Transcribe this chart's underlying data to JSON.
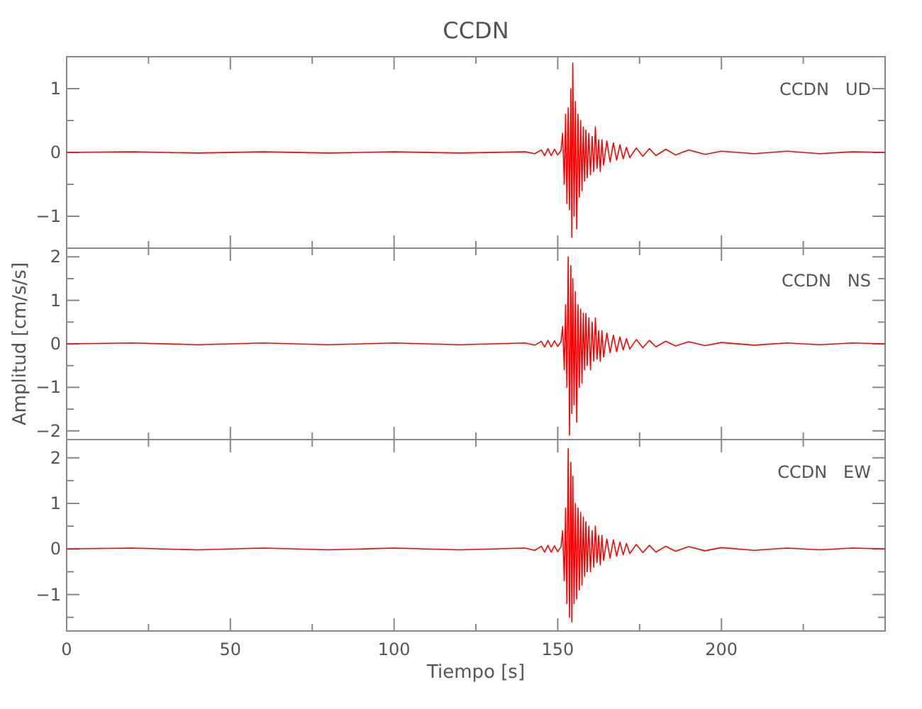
{
  "chart_data": [
    {
      "type": "line",
      "title": "CCDN",
      "annotations": [
        "CCDN   UD"
      ],
      "xlim": [
        0,
        250
      ],
      "xticks": [
        0,
        {
          "value": 25,
          "label": null
        },
        50,
        {
          "value": 75,
          "label": null
        },
        100,
        {
          "value": 125,
          "label": null
        },
        150,
        {
          "value": 175,
          "label": null
        },
        200,
        {
          "value": 225,
          "label": null
        }
      ],
      "ylim": [
        -1.5,
        1.5
      ],
      "yticks": [
        -1,
        {
          "value": -0.5,
          "label": null
        },
        0,
        {
          "value": 0.5,
          "label": null
        },
        1
      ],
      "tick_labels": "y",
      "grid": false,
      "series": [
        {
          "color": "#ff0000",
          "x": [
            0,
            20,
            40,
            60,
            80,
            100,
            120,
            140,
            143,
            145,
            146,
            147,
            148,
            149,
            150,
            151,
            151.5,
            152,
            152.4,
            152.8,
            153.2,
            153.6,
            154,
            154.3,
            154.6,
            155,
            155.4,
            155.8,
            156.2,
            156.6,
            157,
            157.4,
            157.8,
            158.2,
            158.6,
            159,
            159.5,
            160,
            160.5,
            161,
            161.5,
            162,
            162.5,
            163,
            163.5,
            164,
            165,
            166,
            167,
            168,
            169,
            170,
            171,
            172,
            174,
            176,
            178,
            180,
            183,
            186,
            190,
            195,
            200,
            210,
            220,
            230,
            240,
            250
          ],
          "values": [
            0,
            0.01,
            -0.01,
            0.01,
            -0.01,
            0.01,
            -0.01,
            0.01,
            -0.02,
            0.04,
            -0.05,
            0.06,
            -0.05,
            0.05,
            -0.04,
            0.03,
            0.3,
            -0.5,
            0.6,
            -0.8,
            0.7,
            -0.9,
            1.0,
            -1.33,
            1.4,
            -1.0,
            0.8,
            -1.2,
            0.6,
            -0.7,
            0.5,
            -0.6,
            0.4,
            -0.45,
            0.35,
            -0.4,
            0.3,
            -0.35,
            0.25,
            -0.3,
            0.4,
            -0.25,
            0.2,
            -0.3,
            0.2,
            -0.2,
            0.18,
            -0.15,
            0.15,
            -0.12,
            0.12,
            -0.1,
            0.08,
            -0.08,
            0.07,
            -0.06,
            0.06,
            -0.05,
            0.05,
            -0.04,
            0.04,
            -0.03,
            0.02,
            -0.02,
            0.02,
            -0.02,
            0.01,
            0
          ]
        }
      ]
    },
    {
      "type": "line",
      "ylabel": "Amplitud [cm/s/s]",
      "annotations": [
        "CCDN   NS"
      ],
      "xlim": [
        0,
        250
      ],
      "xticks": [
        0,
        {
          "value": 25,
          "label": null
        },
        50,
        {
          "value": 75,
          "label": null
        },
        100,
        {
          "value": 125,
          "label": null
        },
        150,
        {
          "value": 175,
          "label": null
        },
        200,
        {
          "value": 225,
          "label": null
        }
      ],
      "ylim": [
        -2.2,
        2.2
      ],
      "yticks": [
        -2,
        {
          "value": -1.5,
          "label": null
        },
        -1,
        {
          "value": -0.5,
          "label": null
        },
        0,
        {
          "value": 0.5,
          "label": null
        },
        1,
        {
          "value": 1.5,
          "label": null
        },
        2
      ],
      "tick_labels": "y",
      "grid": false,
      "series": [
        {
          "color": "#ff0000",
          "x": [
            0,
            20,
            40,
            60,
            80,
            100,
            120,
            140,
            143,
            145,
            146,
            147,
            148,
            149,
            150,
            151,
            151.5,
            152,
            152.4,
            152.8,
            153.2,
            153.6,
            154,
            154.3,
            154.6,
            155,
            155.4,
            155.8,
            156.2,
            156.6,
            157,
            157.4,
            157.8,
            158.2,
            158.6,
            159,
            159.5,
            160,
            160.5,
            161,
            161.5,
            162,
            162.5,
            163,
            163.5,
            164,
            165,
            166,
            167,
            168,
            169,
            170,
            171,
            172,
            174,
            176,
            178,
            180,
            183,
            186,
            190,
            195,
            200,
            210,
            220,
            230,
            240,
            250
          ],
          "values": [
            0,
            0.02,
            -0.02,
            0.02,
            -0.02,
            0.02,
            -0.02,
            0.02,
            -0.03,
            0.06,
            -0.07,
            0.08,
            -0.07,
            0.07,
            -0.06,
            0.05,
            0.4,
            -0.6,
            0.9,
            -1.0,
            2.0,
            -2.1,
            1.8,
            -1.6,
            1.5,
            -1.4,
            1.2,
            -1.8,
            0.9,
            -1.0,
            0.8,
            -0.9,
            0.7,
            -0.6,
            0.7,
            -0.5,
            0.6,
            -0.6,
            0.5,
            -0.4,
            0.6,
            -0.35,
            0.3,
            -0.4,
            0.3,
            -0.3,
            0.25,
            -0.2,
            0.2,
            -0.18,
            0.16,
            -0.14,
            0.12,
            -0.12,
            0.1,
            -0.09,
            0.08,
            -0.07,
            0.06,
            -0.05,
            0.05,
            -0.04,
            0.03,
            -0.03,
            0.02,
            -0.02,
            0.02,
            0
          ]
        }
      ]
    },
    {
      "type": "line",
      "xlabel": "Tiempo [s]",
      "annotations": [
        "CCDN   EW"
      ],
      "xlim": [
        0,
        250
      ],
      "xticks": [
        0,
        {
          "value": 25,
          "label": null
        },
        50,
        {
          "value": 75,
          "label": null
        },
        100,
        {
          "value": 125,
          "label": null
        },
        150,
        {
          "value": 175,
          "label": null
        },
        200,
        {
          "value": 225,
          "label": null
        }
      ],
      "ylim": [
        -1.8,
        2.4
      ],
      "yticks": [
        {
          "value": -1.5,
          "label": null
        },
        -1,
        {
          "value": -0.5,
          "label": null
        },
        0,
        {
          "value": 0.5,
          "label": null
        },
        1,
        {
          "value": 1.5,
          "label": null
        },
        2
      ],
      "grid": false,
      "series": [
        {
          "color": "#ff0000",
          "x": [
            0,
            20,
            40,
            60,
            80,
            100,
            120,
            140,
            143,
            145,
            146,
            147,
            148,
            149,
            150,
            151,
            151.5,
            152,
            152.4,
            152.8,
            153.2,
            153.6,
            154,
            154.3,
            154.6,
            155,
            155.4,
            155.8,
            156.2,
            156.6,
            157,
            157.4,
            157.8,
            158.2,
            158.6,
            159,
            159.5,
            160,
            160.5,
            161,
            161.5,
            162,
            162.5,
            163,
            163.5,
            164,
            165,
            166,
            167,
            168,
            169,
            170,
            171,
            172,
            174,
            176,
            178,
            180,
            183,
            186,
            190,
            195,
            200,
            210,
            220,
            230,
            240,
            250
          ],
          "values": [
            0,
            0.02,
            -0.02,
            0.02,
            -0.02,
            0.02,
            -0.02,
            0.02,
            -0.03,
            0.06,
            -0.07,
            0.08,
            -0.07,
            0.07,
            -0.06,
            0.05,
            0.4,
            -0.7,
            0.9,
            -1.2,
            2.2,
            -1.5,
            1.9,
            -1.6,
            1.6,
            -1.2,
            1.0,
            -1.1,
            0.9,
            -0.9,
            0.8,
            -0.8,
            0.7,
            -0.6,
            0.6,
            -0.5,
            0.5,
            -0.5,
            0.4,
            -0.4,
            0.5,
            -0.3,
            0.3,
            -0.35,
            0.3,
            -0.25,
            0.22,
            -0.2,
            0.2,
            -0.16,
            0.15,
            -0.13,
            0.12,
            -0.1,
            0.1,
            -0.08,
            0.08,
            -0.07,
            0.06,
            -0.05,
            0.05,
            -0.04,
            0.03,
            -0.03,
            0.02,
            -0.02,
            0.02,
            0
          ]
        }
      ]
    }
  ]
}
